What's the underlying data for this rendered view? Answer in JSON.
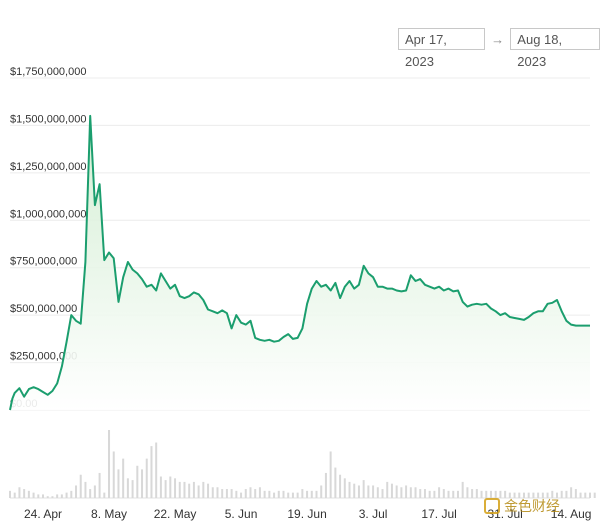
{
  "date_range": {
    "start": "Apr 17, 2023",
    "separator": "→",
    "end": "Aug 18, 2023"
  },
  "watermark": {
    "text": "金色财经"
  },
  "colors": {
    "line": "#1b9e6e",
    "fill": "#e6f5e6",
    "grid": "#ececec",
    "volume": "#d8d8d8"
  },
  "chart_data": {
    "type": "area",
    "title": "",
    "xlabel": "",
    "ylabel": "",
    "ylim": [
      0,
      1750000000
    ],
    "y_ticks": [
      "$0.00",
      "$250,000,000",
      "$500,000,000",
      "$750,000,000",
      "$1,000,000,000",
      "$1,250,000,000",
      "$1,500,000,000",
      "$1,750,000,000"
    ],
    "y_tick_values": [
      0,
      250000000,
      500000000,
      750000000,
      1000000000,
      1250000000,
      1500000000,
      1750000000
    ],
    "x_ticks": [
      {
        "label": "24. Apr",
        "date": "2023-04-24"
      },
      {
        "label": "8. May",
        "date": "2023-05-08"
      },
      {
        "label": "22. May",
        "date": "2023-05-22"
      },
      {
        "label": "5. Jun",
        "date": "2023-06-05"
      },
      {
        "label": "19. Jun",
        "date": "2023-06-19"
      },
      {
        "label": "3. Jul",
        "date": "2023-07-03"
      },
      {
        "label": "17. Jul",
        "date": "2023-07-17"
      },
      {
        "label": "31. Jul",
        "date": "2023-07-31"
      },
      {
        "label": "14. Aug",
        "date": "2023-08-14"
      }
    ],
    "x_start": "2023-04-17",
    "x_end": "2023-08-18",
    "grid": true,
    "series": [
      {
        "points": [
          [
            "2023-04-17",
            0
          ],
          [
            "2023-04-17T12",
            60000000
          ],
          [
            "2023-04-18",
            90000000
          ],
          [
            "2023-04-19",
            115000000
          ],
          [
            "2023-04-20",
            70000000
          ],
          [
            "2023-04-21",
            110000000
          ],
          [
            "2023-04-22",
            120000000
          ],
          [
            "2023-04-23",
            110000000
          ],
          [
            "2023-04-24",
            95000000
          ],
          [
            "2023-04-25",
            80000000
          ],
          [
            "2023-04-26",
            100000000
          ],
          [
            "2023-04-27",
            140000000
          ],
          [
            "2023-04-28",
            230000000
          ],
          [
            "2023-04-29",
            360000000
          ],
          [
            "2023-04-30",
            500000000
          ],
          [
            "2023-05-01",
            470000000
          ],
          [
            "2023-05-02",
            455000000
          ],
          [
            "2023-05-03",
            780000000
          ],
          [
            "2023-05-04",
            1550000000
          ],
          [
            "2023-05-05",
            1080000000
          ],
          [
            "2023-05-06",
            1190000000
          ],
          [
            "2023-05-07",
            790000000
          ],
          [
            "2023-05-08",
            830000000
          ],
          [
            "2023-05-09",
            800000000
          ],
          [
            "2023-05-10",
            570000000
          ],
          [
            "2023-05-11",
            700000000
          ],
          [
            "2023-05-12",
            780000000
          ],
          [
            "2023-05-13",
            740000000
          ],
          [
            "2023-05-14",
            720000000
          ],
          [
            "2023-05-15",
            690000000
          ],
          [
            "2023-05-16",
            650000000
          ],
          [
            "2023-05-17",
            660000000
          ],
          [
            "2023-05-18",
            630000000
          ],
          [
            "2023-05-19",
            720000000
          ],
          [
            "2023-05-20",
            680000000
          ],
          [
            "2023-05-21",
            640000000
          ],
          [
            "2023-05-22",
            660000000
          ],
          [
            "2023-05-23",
            600000000
          ],
          [
            "2023-05-24",
            590000000
          ],
          [
            "2023-05-25",
            600000000
          ],
          [
            "2023-05-26",
            620000000
          ],
          [
            "2023-05-27",
            610000000
          ],
          [
            "2023-05-28",
            580000000
          ],
          [
            "2023-05-29",
            530000000
          ],
          [
            "2023-05-30",
            520000000
          ],
          [
            "2023-05-31",
            510000000
          ],
          [
            "2023-06-01",
            525000000
          ],
          [
            "2023-06-02",
            510000000
          ],
          [
            "2023-06-03",
            430000000
          ],
          [
            "2023-06-04",
            500000000
          ],
          [
            "2023-06-05",
            460000000
          ],
          [
            "2023-06-06",
            450000000
          ],
          [
            "2023-06-07",
            470000000
          ],
          [
            "2023-06-08",
            380000000
          ],
          [
            "2023-06-09",
            370000000
          ],
          [
            "2023-06-10",
            365000000
          ],
          [
            "2023-06-11",
            370000000
          ],
          [
            "2023-06-12",
            360000000
          ],
          [
            "2023-06-13",
            365000000
          ],
          [
            "2023-06-14",
            385000000
          ],
          [
            "2023-06-15",
            400000000
          ],
          [
            "2023-06-16",
            375000000
          ],
          [
            "2023-06-17",
            380000000
          ],
          [
            "2023-06-18",
            430000000
          ],
          [
            "2023-06-19",
            560000000
          ],
          [
            "2023-06-20",
            640000000
          ],
          [
            "2023-06-21",
            680000000
          ],
          [
            "2023-06-22",
            650000000
          ],
          [
            "2023-06-23",
            660000000
          ],
          [
            "2023-06-24",
            630000000
          ],
          [
            "2023-06-25",
            670000000
          ],
          [
            "2023-06-26",
            590000000
          ],
          [
            "2023-06-27",
            650000000
          ],
          [
            "2023-06-28",
            680000000
          ],
          [
            "2023-06-29",
            640000000
          ],
          [
            "2023-06-30",
            660000000
          ],
          [
            "2023-07-01",
            760000000
          ],
          [
            "2023-07-02",
            720000000
          ],
          [
            "2023-07-03",
            700000000
          ],
          [
            "2023-07-04",
            650000000
          ],
          [
            "2023-07-05",
            650000000
          ],
          [
            "2023-07-06",
            640000000
          ],
          [
            "2023-07-07",
            640000000
          ],
          [
            "2023-07-08",
            630000000
          ],
          [
            "2023-07-09",
            625000000
          ],
          [
            "2023-07-10",
            630000000
          ],
          [
            "2023-07-11",
            710000000
          ],
          [
            "2023-07-12",
            680000000
          ],
          [
            "2023-07-13",
            690000000
          ],
          [
            "2023-07-14",
            660000000
          ],
          [
            "2023-07-15",
            650000000
          ],
          [
            "2023-07-16",
            640000000
          ],
          [
            "2023-07-17",
            650000000
          ],
          [
            "2023-07-18",
            630000000
          ],
          [
            "2023-07-19",
            640000000
          ],
          [
            "2023-07-20",
            625000000
          ],
          [
            "2023-07-21",
            630000000
          ],
          [
            "2023-07-22",
            570000000
          ],
          [
            "2023-07-23",
            545000000
          ],
          [
            "2023-07-24",
            555000000
          ],
          [
            "2023-07-25",
            560000000
          ],
          [
            "2023-07-26",
            555000000
          ],
          [
            "2023-07-27",
            560000000
          ],
          [
            "2023-07-28",
            535000000
          ],
          [
            "2023-07-29",
            520000000
          ],
          [
            "2023-07-30",
            500000000
          ],
          [
            "2023-07-31",
            510000000
          ],
          [
            "2023-08-01",
            490000000
          ],
          [
            "2023-08-02",
            485000000
          ],
          [
            "2023-08-03",
            480000000
          ],
          [
            "2023-08-04",
            475000000
          ],
          [
            "2023-08-05",
            490000000
          ],
          [
            "2023-08-06",
            510000000
          ],
          [
            "2023-08-07",
            520000000
          ],
          [
            "2023-08-08",
            520000000
          ],
          [
            "2023-08-09",
            560000000
          ],
          [
            "2023-08-10",
            565000000
          ],
          [
            "2023-08-11",
            580000000
          ],
          [
            "2023-08-12",
            520000000
          ],
          [
            "2023-08-13",
            470000000
          ],
          [
            "2023-08-14",
            450000000
          ],
          [
            "2023-08-15",
            445000000
          ],
          [
            "2023-08-18",
            445000000
          ]
        ]
      }
    ],
    "volume": {
      "values": [
        4,
        3,
        6,
        5,
        4,
        3,
        2,
        2,
        1,
        1,
        2,
        2,
        3,
        4,
        7,
        13,
        9,
        5,
        7,
        14,
        3,
        38,
        26,
        16,
        22,
        11,
        10,
        18,
        16,
        22,
        29,
        31,
        12,
        10,
        12,
        11,
        9,
        9,
        8,
        9,
        7,
        9,
        8,
        6,
        6,
        5,
        5,
        5,
        4,
        3,
        5,
        6,
        5,
        6,
        4,
        4,
        3,
        4,
        4,
        3,
        3,
        3,
        5,
        4,
        4,
        4,
        7,
        14,
        26,
        17,
        13,
        11,
        9,
        8,
        7,
        10,
        7,
        7,
        6,
        5,
        9,
        8,
        7,
        6,
        7,
        6,
        6,
        5,
        5,
        4,
        4,
        6,
        5,
        4,
        4,
        4,
        9,
        6,
        5,
        5,
        4,
        4,
        4,
        4,
        4,
        4,
        3,
        3,
        3,
        3,
        3,
        3,
        3,
        3,
        3,
        4,
        3,
        4,
        4,
        6,
        5,
        3,
        3,
        3,
        3
      ]
    }
  }
}
